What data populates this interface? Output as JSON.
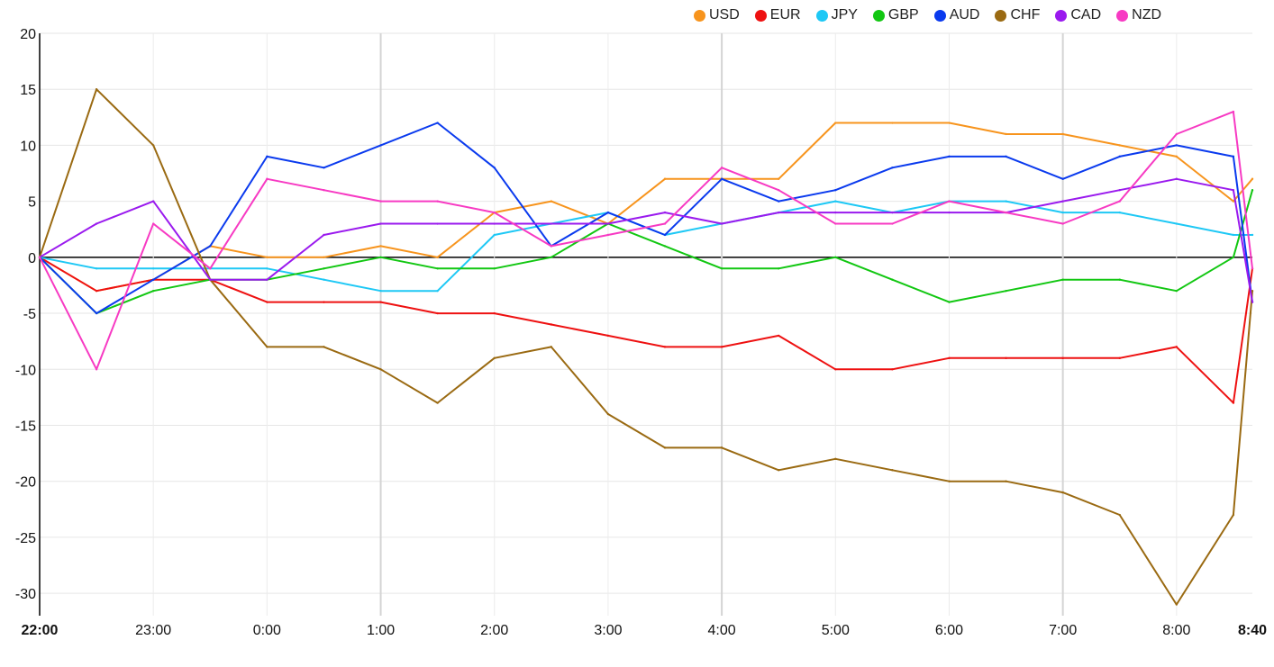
{
  "chart_data": {
    "type": "line",
    "ylim": [
      -32,
      20
    ],
    "yticks": [
      20,
      15,
      10,
      5,
      0,
      -5,
      -10,
      -15,
      -20,
      -25,
      -30
    ],
    "ytick_labels": [
      "20",
      "15",
      "10",
      "5",
      "0",
      "-5",
      "-10",
      "-15",
      "-20",
      "-25",
      "-30"
    ],
    "xticks": [
      {
        "label": "22:00",
        "bold": true
      },
      {
        "label": "23:00",
        "bold": false
      },
      {
        "label": "0:00",
        "bold": false
      },
      {
        "label": "1:00",
        "bold": false
      },
      {
        "label": "2:00",
        "bold": false
      },
      {
        "label": "3:00",
        "bold": false
      },
      {
        "label": "4:00",
        "bold": false
      },
      {
        "label": "5:00",
        "bold": false
      },
      {
        "label": "6:00",
        "bold": false
      },
      {
        "label": "7:00",
        "bold": false
      },
      {
        "label": "8:00",
        "bold": false
      },
      {
        "label": "8:40",
        "bold": true
      }
    ],
    "x_hours": [
      0,
      0.5,
      1,
      1.5,
      2,
      2.5,
      3,
      3.5,
      4,
      4.5,
      5,
      5.5,
      6,
      6.5,
      7,
      7.5,
      8,
      8.5,
      9,
      9.5,
      10,
      10.5,
      10.667
    ],
    "series": [
      {
        "name": "USD",
        "color": "#f7941d",
        "values": [
          0,
          -3,
          -2,
          1,
          0,
          0,
          1,
          0,
          4,
          5,
          3,
          7,
          7,
          7,
          12,
          12,
          12,
          11,
          11,
          10,
          9,
          5,
          7
        ]
      },
      {
        "name": "EUR",
        "color": "#ee1111",
        "values": [
          0,
          -3,
          -2,
          -2,
          -4,
          -4,
          -4,
          -5,
          -5,
          -6,
          -7,
          -8,
          -8,
          -7,
          -10,
          -10,
          -9,
          -9,
          -9,
          -9,
          -8,
          -13,
          -1
        ]
      },
      {
        "name": "JPY",
        "color": "#1ec8f5",
        "values": [
          0,
          -1,
          -1,
          -1,
          -1,
          -2,
          -3,
          -3,
          2,
          3,
          4,
          2,
          3,
          4,
          5,
          4,
          5,
          5,
          4,
          4,
          3,
          2,
          2
        ]
      },
      {
        "name": "GBP",
        "color": "#12c712",
        "values": [
          0,
          -5,
          -3,
          -2,
          -2,
          -1,
          0,
          -1,
          -1,
          0,
          3,
          1,
          -1,
          -1,
          0,
          -2,
          -4,
          -3,
          -2,
          -2,
          -3,
          0,
          6
        ]
      },
      {
        "name": "AUD",
        "color": "#0a3aee",
        "values": [
          0,
          -5,
          -2,
          1,
          9,
          8,
          10,
          12,
          8,
          1,
          4,
          2,
          7,
          5,
          6,
          8,
          9,
          9,
          7,
          9,
          10,
          9,
          -4
        ]
      },
      {
        "name": "CHF",
        "color": "#9a6a12",
        "values": [
          0,
          15,
          10,
          -2,
          -8,
          -8,
          -10,
          -13,
          -9,
          -8,
          -14,
          -17,
          -17,
          -19,
          -18,
          -19,
          -20,
          -20,
          -21,
          -23,
          -31,
          -23,
          -3
        ]
      },
      {
        "name": "CAD",
        "color": "#9a1aee",
        "values": [
          0,
          3,
          5,
          -2,
          -2,
          2,
          3,
          3,
          3,
          3,
          3,
          4,
          3,
          4,
          4,
          4,
          4,
          4,
          5,
          6,
          7,
          6,
          -4
        ]
      },
      {
        "name": "NZD",
        "color": "#f73ac3",
        "values": [
          0,
          -10,
          3,
          -1,
          7,
          6,
          5,
          5,
          4,
          1,
          2,
          3,
          8,
          6,
          3,
          3,
          5,
          4,
          3,
          5,
          11,
          13,
          -1
        ]
      }
    ]
  }
}
